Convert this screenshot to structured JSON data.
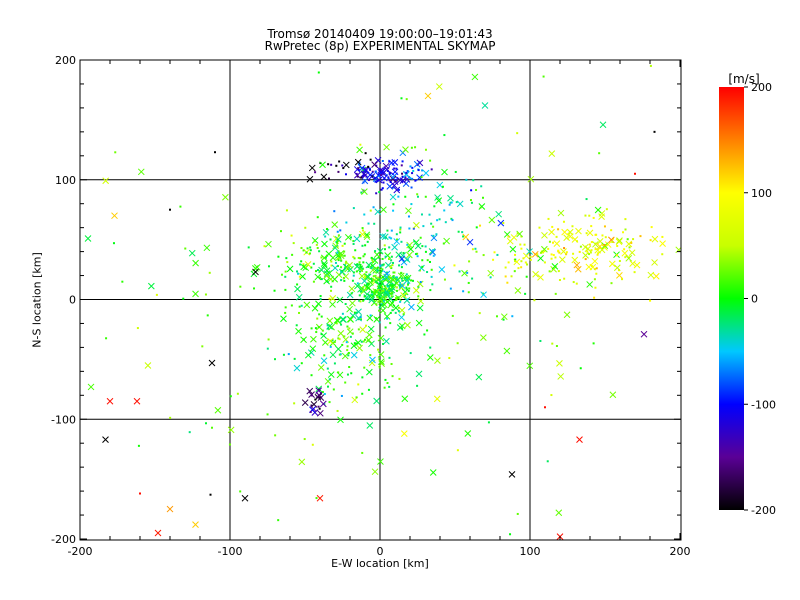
{
  "title": [
    "Tromsø 20140409 19:00:00–19:01:43",
    "RwPretec (8p) EXPERIMENTAL SKYMAP"
  ],
  "chart_data": {
    "type": "scatter",
    "xlabel": "E-W location [km]",
    "ylabel": "N-S location [km]",
    "xlim": [
      -200,
      200
    ],
    "ylim": [
      -200,
      200
    ],
    "xticks": [
      "-200",
      "-100",
      "0",
      "100",
      "200"
    ],
    "yticks": [
      "-200",
      "-100",
      "0",
      "100",
      "200"
    ],
    "grid_lines": [
      -100,
      0,
      100
    ],
    "colorbar": {
      "unit": "[m/s]",
      "range": [
        -200,
        200
      ],
      "ticks": [
        "-200",
        "-100",
        "0",
        "100",
        "200"
      ],
      "colormap": [
        "#000000",
        "#5a0096",
        "#0000ff",
        "#00c8ff",
        "#00ff00",
        "#c8ff00",
        "#ffff00",
        "#ff8000",
        "#ff0000"
      ]
    },
    "markers": [
      "cross (x)",
      "dot"
    ],
    "clusters": [
      {
        "center": [
          5,
          10
        ],
        "spread": [
          8,
          10
        ],
        "velocity": 0,
        "count": 200
      },
      {
        "center": [
          -25,
          30
        ],
        "spread": [
          30,
          12
        ],
        "velocity": 10,
        "count": 170
      },
      {
        "center": [
          -20,
          -30
        ],
        "spread": [
          22,
          30
        ],
        "velocity": 5,
        "count": 210
      },
      {
        "center": [
          25,
          50
        ],
        "spread": [
          32,
          28
        ],
        "velocity": -30,
        "count": 170
      },
      {
        "center": [
          130,
          40
        ],
        "spread": [
          30,
          16
        ],
        "velocity": 75,
        "count": 190
      },
      {
        "center": [
          5,
          105
        ],
        "spread": [
          12,
          6
        ],
        "velocity": -110,
        "count": 110
      },
      {
        "center": [
          -30,
          112
        ],
        "spread": [
          14,
          6
        ],
        "velocity": -180,
        "count": 22
      },
      {
        "center": [
          -40,
          -87
        ],
        "spread": [
          5,
          6
        ],
        "velocity": -160,
        "count": 22
      },
      {
        "center": [
          0,
          0
        ],
        "spread": [
          90,
          90
        ],
        "velocity": 20,
        "count": 170
      }
    ],
    "isolated_points": [
      {
        "x": -183,
        "y": -117,
        "v": -200,
        "marker": "x"
      },
      {
        "x": -180,
        "y": -85,
        "v": 195,
        "marker": "x"
      },
      {
        "x": -162,
        "y": -85,
        "v": 195,
        "marker": "x"
      },
      {
        "x": -148,
        "y": -195,
        "v": 190,
        "marker": "x"
      },
      {
        "x": -140,
        "y": -175,
        "v": 140,
        "marker": "x"
      },
      {
        "x": -123,
        "y": -188,
        "v": 120,
        "marker": "x"
      },
      {
        "x": -112,
        "y": -53,
        "v": -200,
        "marker": "x"
      },
      {
        "x": -90,
        "y": -166,
        "v": -200,
        "marker": "x"
      },
      {
        "x": -40,
        "y": -166,
        "v": 190,
        "marker": "x"
      },
      {
        "x": 88,
        "y": -146,
        "v": -200,
        "marker": "x"
      },
      {
        "x": 133,
        "y": -117,
        "v": 195,
        "marker": "x"
      },
      {
        "x": 120,
        "y": -198,
        "v": 195,
        "marker": "x"
      },
      {
        "x": 176,
        "y": -29,
        "v": -150,
        "marker": "x"
      },
      {
        "x": 70,
        "y": 162,
        "v": -30,
        "marker": "x"
      },
      {
        "x": 32,
        "y": 170,
        "v": 120,
        "marker": "x"
      },
      {
        "x": -177,
        "y": 70,
        "v": 120,
        "marker": "x"
      },
      {
        "x": -83,
        "y": 23,
        "v": -200,
        "marker": "x"
      },
      {
        "x": 183,
        "y": 140,
        "v": -200,
        "marker": "dot"
      },
      {
        "x": 170,
        "y": 105,
        "v": 195,
        "marker": "dot"
      },
      {
        "x": 110,
        "y": -90,
        "v": 195,
        "marker": "dot"
      },
      {
        "x": -113,
        "y": -163,
        "v": -200,
        "marker": "dot"
      },
      {
        "x": -110,
        "y": 123,
        "v": -200,
        "marker": "dot"
      },
      {
        "x": -140,
        "y": 75,
        "v": -200,
        "marker": "dot"
      },
      {
        "x": -160,
        "y": -162,
        "v": 195,
        "marker": "dot"
      }
    ]
  }
}
